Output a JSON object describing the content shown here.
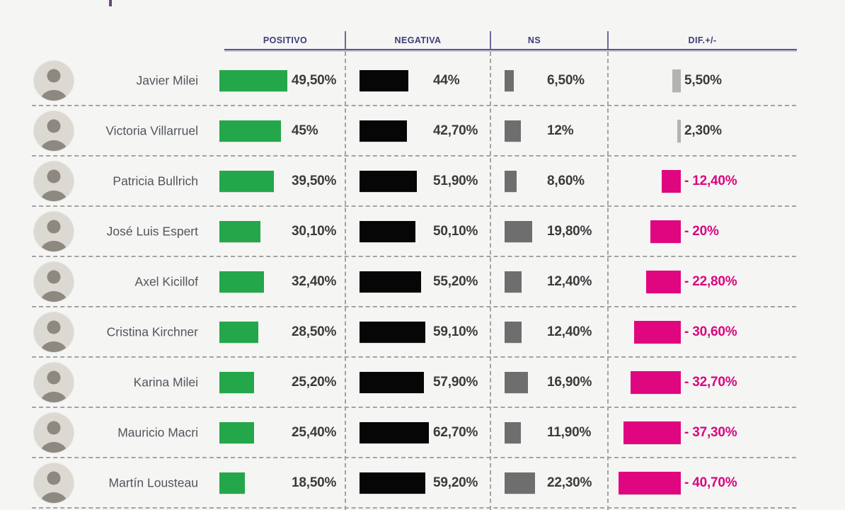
{
  "header": {
    "positivo": "POSITIVO",
    "negativa": "NEGATIVA",
    "ns": "NS",
    "dif": "DIF.+/-"
  },
  "rows": [
    {
      "name": "Javier Milei",
      "positivo": {
        "display": "49,50%",
        "value": 49.5
      },
      "negativa": {
        "display": "44%",
        "value": 44.0
      },
      "ns": {
        "display": "6,50%",
        "value": 6.5
      },
      "dif": {
        "display": "5,50%",
        "value": 5.5,
        "negative": false
      }
    },
    {
      "name": "Victoria Villarruel",
      "positivo": {
        "display": "45%",
        "value": 45.0
      },
      "negativa": {
        "display": "42,70%",
        "value": 42.7
      },
      "ns": {
        "display": "12%",
        "value": 12.0
      },
      "dif": {
        "display": "2,30%",
        "value": 2.3,
        "negative": false
      }
    },
    {
      "name": "Patricia Bullrich",
      "positivo": {
        "display": "39,50%",
        "value": 39.5
      },
      "negativa": {
        "display": "51,90%",
        "value": 51.9
      },
      "ns": {
        "display": "8,60%",
        "value": 8.6
      },
      "dif": {
        "display": "- 12,40%",
        "value": 12.4,
        "negative": true
      }
    },
    {
      "name": "José Luis Espert",
      "positivo": {
        "display": "30,10%",
        "value": 30.1
      },
      "negativa": {
        "display": "50,10%",
        "value": 50.1
      },
      "ns": {
        "display": "19,80%",
        "value": 19.8
      },
      "dif": {
        "display": "- 20%",
        "value": 20.0,
        "negative": true
      }
    },
    {
      "name": "Axel Kicillof",
      "positivo": {
        "display": "32,40%",
        "value": 32.4
      },
      "negativa": {
        "display": "55,20%",
        "value": 55.2
      },
      "ns": {
        "display": "12,40%",
        "value": 12.4
      },
      "dif": {
        "display": "- 22,80%",
        "value": 22.8,
        "negative": true
      }
    },
    {
      "name": "Cristina Kirchner",
      "positivo": {
        "display": "28,50%",
        "value": 28.5
      },
      "negativa": {
        "display": "59,10%",
        "value": 59.1
      },
      "ns": {
        "display": "12,40%",
        "value": 12.4
      },
      "dif": {
        "display": "- 30,60%",
        "value": 30.6,
        "negative": true
      }
    },
    {
      "name": "Karina Milei",
      "positivo": {
        "display": "25,20%",
        "value": 25.2
      },
      "negativa": {
        "display": "57,90%",
        "value": 57.9
      },
      "ns": {
        "display": "16,90%",
        "value": 16.9
      },
      "dif": {
        "display": "- 32,70%",
        "value": 32.7,
        "negative": true
      }
    },
    {
      "name": "Mauricio Macri",
      "positivo": {
        "display": "25,40%",
        "value": 25.4
      },
      "negativa": {
        "display": "62,70%",
        "value": 62.7
      },
      "ns": {
        "display": "11,90%",
        "value": 11.9
      },
      "dif": {
        "display": "- 37,30%",
        "value": 37.3,
        "negative": true
      }
    },
    {
      "name": "Martín Lousteau",
      "positivo": {
        "display": "18,50%",
        "value": 18.5
      },
      "negativa": {
        "display": "59,20%",
        "value": 59.2
      },
      "ns": {
        "display": "22,30%",
        "value": 22.3
      },
      "dif": {
        "display": "- 40,70%",
        "value": 40.7,
        "negative": true
      }
    }
  ],
  "colors": {
    "background": "#f5f5f4",
    "positivo_bar": "#24a74a",
    "negativa_bar": "#060606",
    "ns_bar": "#6e6e6e",
    "dif_negative": "#e0067f",
    "dif_positive": "#b3b3b3",
    "header_text": "#3d3d7a",
    "accent_line": "#5a5a85",
    "value_text": "#3b3b3b",
    "name_text": "#51565b",
    "dashed_grid": "#a3a3a3"
  },
  "chart_data": {
    "type": "bar",
    "title": "",
    "categories": [
      "Javier Milei",
      "Victoria Villarruel",
      "Patricia Bullrich",
      "José Luis Espert",
      "Axel Kicillof",
      "Cristina Kirchner",
      "Karina Milei",
      "Mauricio Macri",
      "Martín Lousteau"
    ],
    "series": [
      {
        "name": "POSITIVO",
        "color": "#24a74a",
        "values": [
          49.5,
          45.0,
          39.5,
          30.1,
          32.4,
          28.5,
          25.2,
          25.4,
          18.5
        ]
      },
      {
        "name": "NEGATIVA",
        "color": "#060606",
        "values": [
          44.0,
          42.7,
          51.9,
          50.1,
          55.2,
          59.1,
          57.9,
          62.7,
          59.2
        ]
      },
      {
        "name": "NS",
        "color": "#6e6e6e",
        "values": [
          6.5,
          12.0,
          8.6,
          19.8,
          12.4,
          12.4,
          16.9,
          11.9,
          22.3
        ]
      },
      {
        "name": "DIF.+/-",
        "color": "#e0067f",
        "values": [
          5.5,
          2.3,
          -12.4,
          -20.0,
          -22.8,
          -30.6,
          -32.7,
          -37.3,
          -40.7
        ]
      }
    ],
    "value_format": "percent with Spanish decimal comma",
    "orientation": "horizontal bars per row, one row per person",
    "legend_position": "column headers on top",
    "grid": "dashed separators between rows and columns",
    "xlabel": "",
    "ylabel": ""
  }
}
